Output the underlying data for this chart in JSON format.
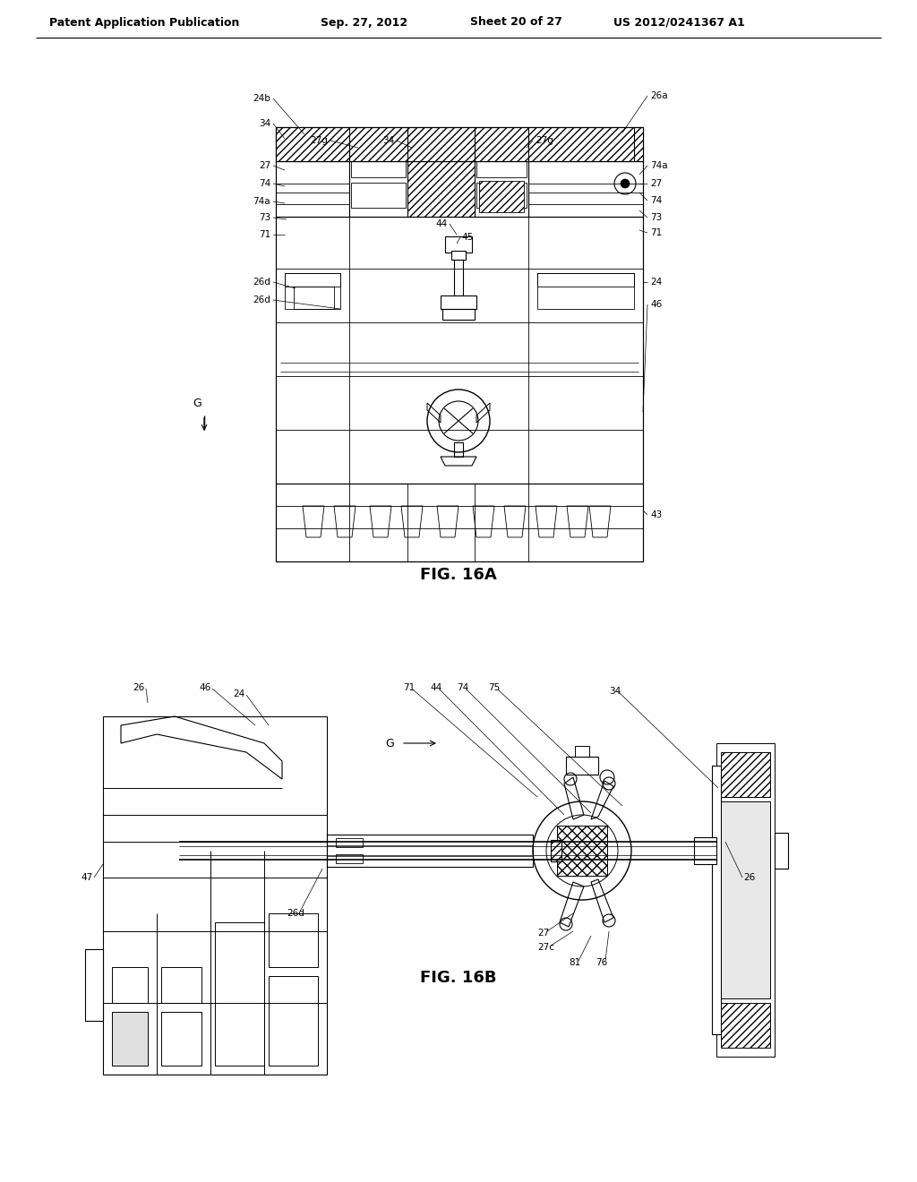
{
  "background_color": "#ffffff",
  "header_text": "Patent Application Publication",
  "header_date": "Sep. 27, 2012",
  "header_sheet": "Sheet 20 of 27",
  "header_patent": "US 2012/0241367 A1",
  "fig_16a_label": "FIG. 16A",
  "fig_16b_label": "FIG. 16B",
  "text_color": "#000000",
  "line_color": "#000000"
}
